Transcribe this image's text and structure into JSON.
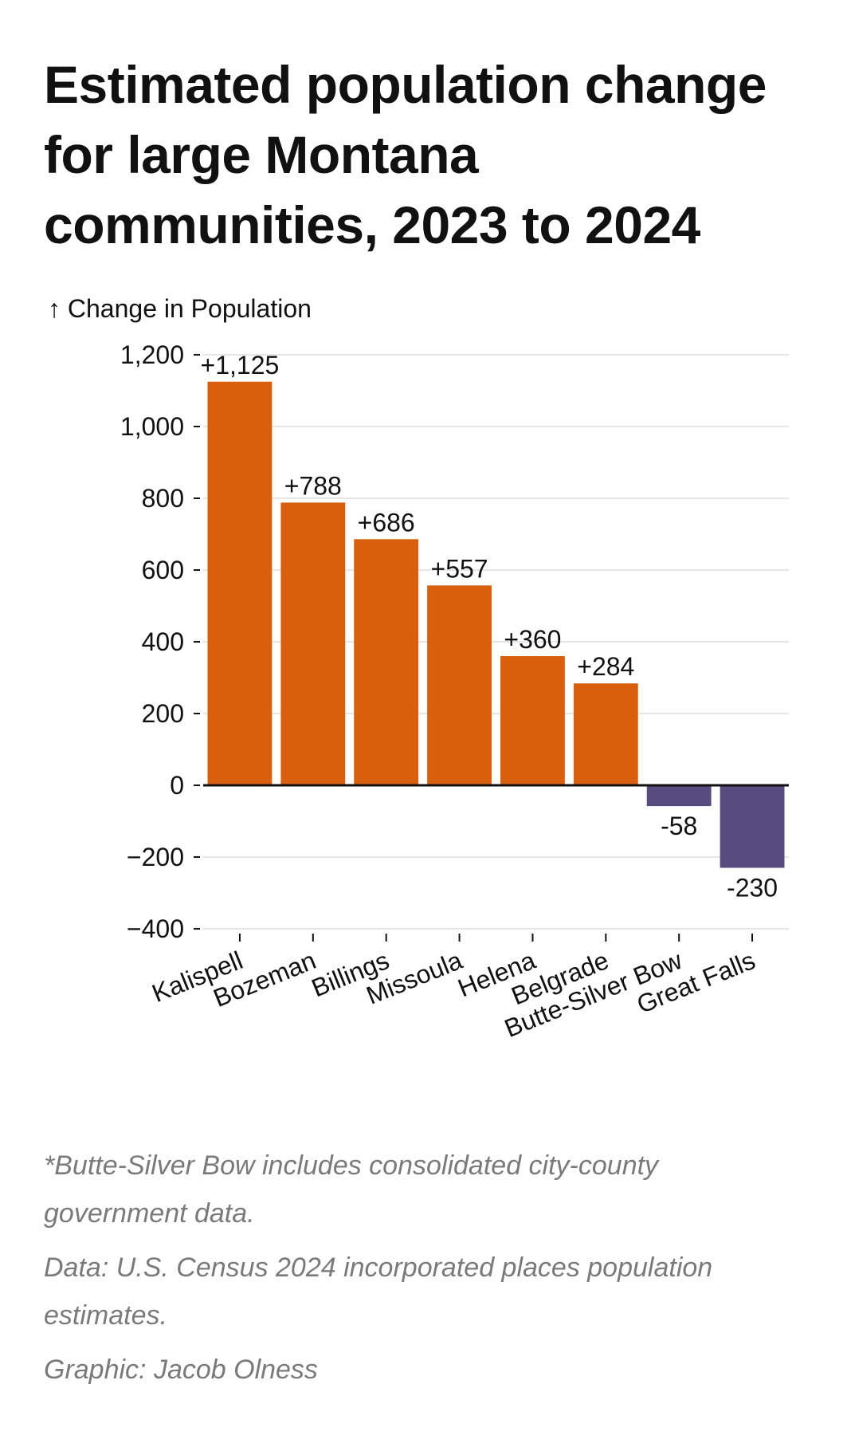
{
  "title": "Estimated population change for large Montana communities, 2023 to 2024",
  "notes": {
    "footnote": "*Butte-Silver Bow includes consolidated city-county government data.",
    "source": "Data: U.S. Census 2024 incorporated places population estimates.",
    "credit": "Graphic: Jacob Olness"
  },
  "colors": {
    "positive": "#d95f0e",
    "negative": "#574b80",
    "grid": "#e6e6e6",
    "baseline": "#111111"
  },
  "chart_data": {
    "type": "bar",
    "ylabel": "↑ Change in Population",
    "categories": [
      "Kalispell",
      "Bozeman",
      "Billings",
      "Missoula",
      "Helena",
      "Belgrade",
      "Butte-Silver Bow",
      "Great Falls"
    ],
    "values": [
      1125,
      788,
      686,
      557,
      360,
      284,
      -58,
      -230
    ],
    "value_labels": [
      "+1,125",
      "+788",
      "+686",
      "+557",
      "+360",
      "+284",
      "-58",
      "-230"
    ],
    "ylim": [
      -400,
      1200
    ],
    "yticks": [
      1200,
      1000,
      800,
      600,
      400,
      200,
      0,
      -200,
      -400
    ],
    "ytick_labels": [
      "1,200",
      "1,000",
      "800",
      "600",
      "400",
      "200",
      "0",
      "−200",
      "−400"
    ],
    "grid": true,
    "legend": "none"
  }
}
